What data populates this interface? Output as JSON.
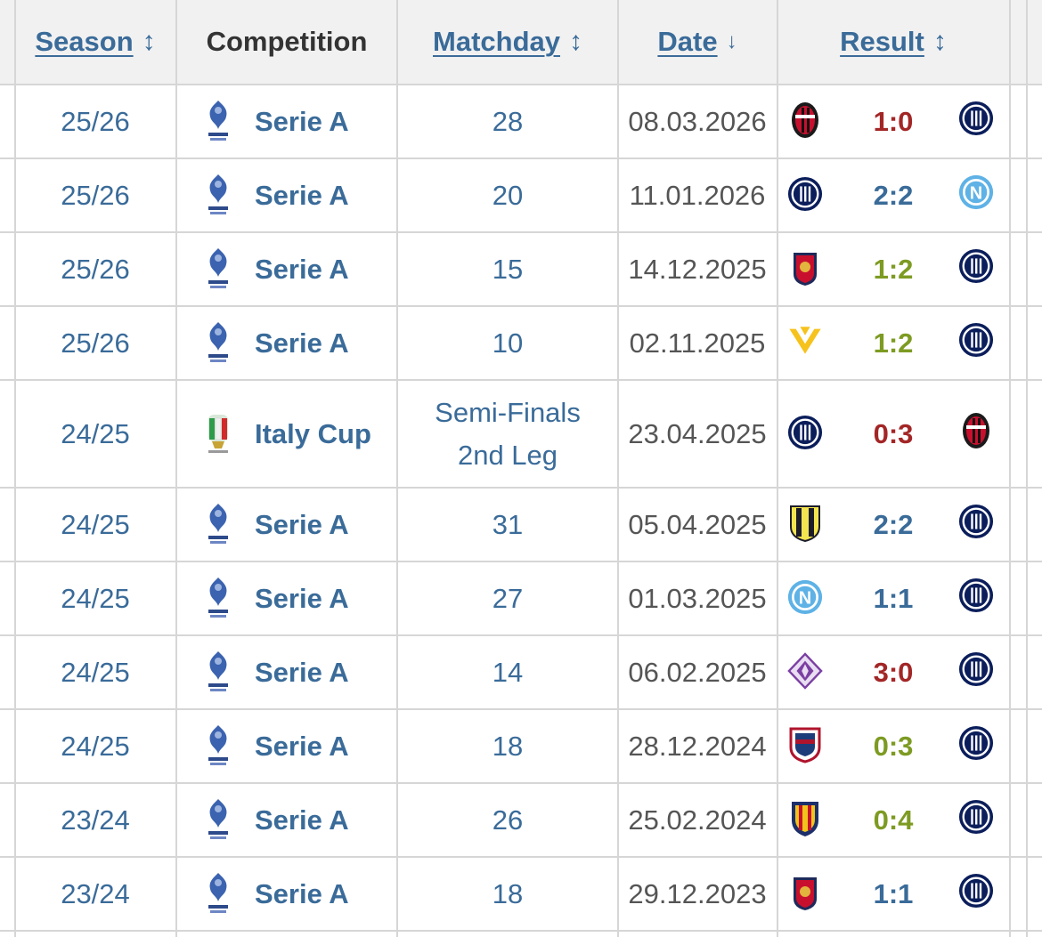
{
  "header": {
    "season": "Season",
    "competition": "Competition",
    "matchday": "Matchday",
    "date": "Date",
    "result": "Result",
    "sort_icon": "↕",
    "sort_desc_icon": "↓"
  },
  "colors": {
    "link": "#3a6b99",
    "loss": "#a32626",
    "win": "#7d9b22",
    "draw": "#3a6b99"
  },
  "rows": [
    {
      "season": "25/26",
      "competition": "Serie A",
      "comp_icon": "serie-a-logo",
      "matchday": "28",
      "date": "08.03.2026",
      "home": "ac-milan",
      "result": "1:0",
      "result_type": "loss",
      "away": "inter"
    },
    {
      "season": "25/26",
      "competition": "Serie A",
      "comp_icon": "serie-a-logo",
      "matchday": "20",
      "date": "11.01.2026",
      "home": "inter",
      "result": "2:2",
      "result_type": "draw",
      "away": "napoli"
    },
    {
      "season": "25/26",
      "competition": "Serie A",
      "comp_icon": "serie-a-logo",
      "matchday": "15",
      "date": "14.12.2025",
      "home": "genoa",
      "result": "1:2",
      "result_type": "win",
      "away": "inter"
    },
    {
      "season": "25/26",
      "competition": "Serie A",
      "comp_icon": "serie-a-logo",
      "matchday": "10",
      "date": "02.11.2025",
      "home": "verona",
      "result": "1:2",
      "result_type": "win",
      "away": "inter"
    },
    {
      "season": "24/25",
      "competition": "Italy Cup",
      "comp_icon": "coppa-italia-logo",
      "matchday": "Semi-Finals\n2nd Leg",
      "date": "23.04.2025",
      "home": "inter",
      "result": "0:3",
      "result_type": "loss",
      "away": "ac-milan"
    },
    {
      "season": "24/25",
      "competition": "Serie A",
      "comp_icon": "serie-a-logo",
      "matchday": "31",
      "date": "05.04.2025",
      "home": "parma",
      "result": "2:2",
      "result_type": "draw",
      "away": "inter"
    },
    {
      "season": "24/25",
      "competition": "Serie A",
      "comp_icon": "serie-a-logo",
      "matchday": "27",
      "date": "01.03.2025",
      "home": "napoli",
      "result": "1:1",
      "result_type": "draw",
      "away": "inter"
    },
    {
      "season": "24/25",
      "competition": "Serie A",
      "comp_icon": "serie-a-logo",
      "matchday": "14",
      "date": "06.02.2025",
      "home": "fiorentina",
      "result": "3:0",
      "result_type": "loss",
      "away": "inter"
    },
    {
      "season": "24/25",
      "competition": "Serie A",
      "comp_icon": "serie-a-logo",
      "matchday": "18",
      "date": "28.12.2024",
      "home": "cagliari",
      "result": "0:3",
      "result_type": "win",
      "away": "inter"
    },
    {
      "season": "23/24",
      "competition": "Serie A",
      "comp_icon": "serie-a-logo",
      "matchday": "26",
      "date": "25.02.2024",
      "home": "lecce",
      "result": "0:4",
      "result_type": "win",
      "away": "inter"
    },
    {
      "season": "23/24",
      "competition": "Serie A",
      "comp_icon": "serie-a-logo",
      "matchday": "18",
      "date": "29.12.2023",
      "home": "genoa",
      "result": "1:1",
      "result_type": "draw",
      "away": "inter"
    }
  ]
}
